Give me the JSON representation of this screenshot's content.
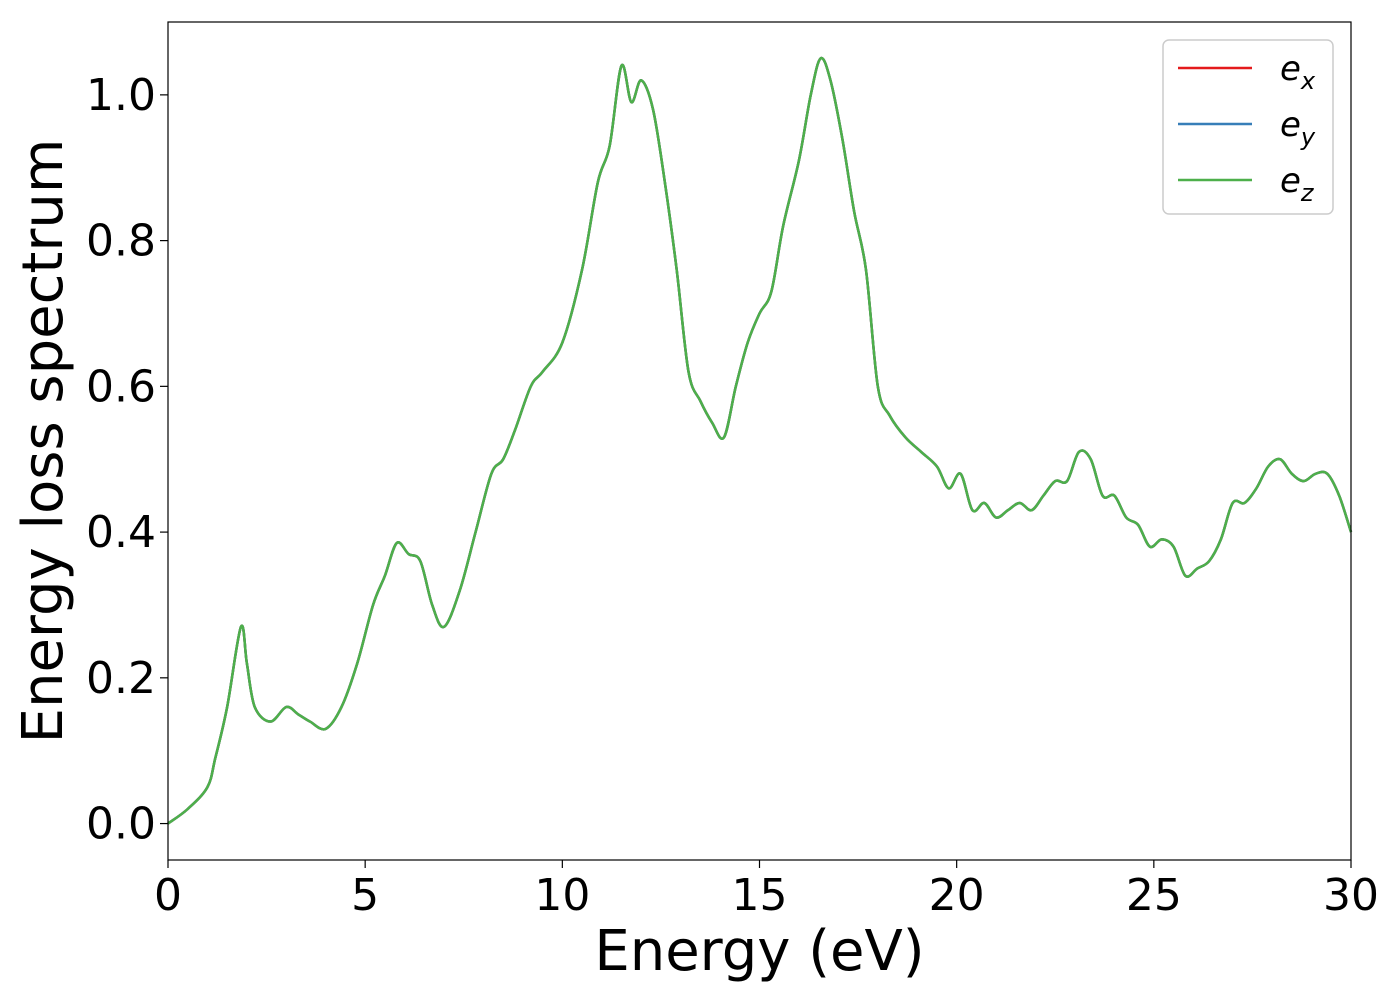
{
  "chart_data": {
    "type": "line",
    "title": "",
    "xlabel": "Energy (eV)",
    "ylabel": "Energy loss spectrum",
    "xlim": [
      0,
      30
    ],
    "ylim": [
      -0.05,
      1.1
    ],
    "xticks": [
      0,
      5,
      10,
      15,
      20,
      25,
      30
    ],
    "yticks": [
      0.0,
      0.2,
      0.4,
      0.6,
      0.8,
      1.0
    ],
    "xtick_labels": [
      "0",
      "5",
      "10",
      "15",
      "20",
      "25",
      "30"
    ],
    "ytick_labels": [
      "0.0",
      "0.2",
      "0.4",
      "0.6",
      "0.8",
      "1.0"
    ],
    "grid": false,
    "legend_position": "top-right",
    "colors": {
      "ex": "#e41a1c",
      "ey": "#377eb8",
      "ez": "#4daf4a"
    },
    "x": [
      0,
      0.5,
      1.0,
      1.2,
      1.5,
      1.85,
      2.0,
      2.2,
      2.6,
      3.0,
      3.3,
      3.6,
      4.0,
      4.4,
      4.8,
      5.2,
      5.5,
      5.8,
      6.1,
      6.4,
      6.7,
      7.0,
      7.4,
      7.8,
      8.2,
      8.5,
      8.8,
      9.2,
      9.5,
      10.0,
      10.5,
      10.9,
      11.2,
      11.5,
      11.75,
      12.0,
      12.3,
      12.6,
      12.9,
      13.2,
      13.5,
      13.8,
      14.1,
      14.4,
      14.7,
      15.0,
      15.3,
      15.6,
      16.0,
      16.3,
      16.55,
      16.8,
      17.1,
      17.4,
      17.7,
      18.0,
      18.3,
      18.7,
      19.1,
      19.5,
      19.8,
      20.1,
      20.4,
      20.7,
      21.0,
      21.3,
      21.6,
      21.9,
      22.2,
      22.5,
      22.8,
      23.1,
      23.4,
      23.7,
      24.0,
      24.3,
      24.6,
      24.9,
      25.2,
      25.5,
      25.8,
      26.1,
      26.4,
      26.7,
      27.0,
      27.3,
      27.6,
      27.9,
      28.2,
      28.5,
      28.8,
      29.1,
      29.4,
      29.7,
      30.0
    ],
    "series": [
      {
        "name": "e_x",
        "label_base": "e",
        "label_sub": "x",
        "values": [
          0.0,
          0.02,
          0.05,
          0.09,
          0.16,
          0.27,
          0.22,
          0.16,
          0.14,
          0.16,
          0.15,
          0.14,
          0.13,
          0.16,
          0.22,
          0.3,
          0.34,
          0.385,
          0.37,
          0.36,
          0.3,
          0.27,
          0.32,
          0.4,
          0.48,
          0.5,
          0.54,
          0.6,
          0.62,
          0.66,
          0.76,
          0.88,
          0.93,
          1.04,
          0.99,
          1.02,
          0.98,
          0.88,
          0.76,
          0.62,
          0.58,
          0.55,
          0.53,
          0.6,
          0.66,
          0.7,
          0.73,
          0.82,
          0.91,
          1.0,
          1.05,
          1.02,
          0.94,
          0.84,
          0.76,
          0.6,
          0.56,
          0.53,
          0.51,
          0.49,
          0.46,
          0.48,
          0.43,
          0.44,
          0.42,
          0.43,
          0.44,
          0.43,
          0.45,
          0.47,
          0.47,
          0.51,
          0.5,
          0.45,
          0.45,
          0.42,
          0.41,
          0.38,
          0.39,
          0.38,
          0.34,
          0.35,
          0.36,
          0.39,
          0.44,
          0.44,
          0.46,
          0.49,
          0.5,
          0.48,
          0.47,
          0.48,
          0.48,
          0.45,
          0.4
        ]
      },
      {
        "name": "e_y",
        "label_base": "e",
        "label_sub": "y",
        "values": [
          0.0,
          0.02,
          0.05,
          0.09,
          0.16,
          0.27,
          0.22,
          0.16,
          0.14,
          0.16,
          0.15,
          0.14,
          0.13,
          0.16,
          0.22,
          0.3,
          0.34,
          0.385,
          0.37,
          0.36,
          0.3,
          0.27,
          0.32,
          0.4,
          0.48,
          0.5,
          0.54,
          0.6,
          0.62,
          0.66,
          0.76,
          0.88,
          0.93,
          1.04,
          0.99,
          1.02,
          0.98,
          0.88,
          0.76,
          0.62,
          0.58,
          0.55,
          0.53,
          0.6,
          0.66,
          0.7,
          0.73,
          0.82,
          0.91,
          1.0,
          1.05,
          1.02,
          0.94,
          0.84,
          0.76,
          0.6,
          0.56,
          0.53,
          0.51,
          0.49,
          0.46,
          0.48,
          0.43,
          0.44,
          0.42,
          0.43,
          0.44,
          0.43,
          0.45,
          0.47,
          0.47,
          0.51,
          0.5,
          0.45,
          0.45,
          0.42,
          0.41,
          0.38,
          0.39,
          0.38,
          0.34,
          0.35,
          0.36,
          0.39,
          0.44,
          0.44,
          0.46,
          0.49,
          0.5,
          0.48,
          0.47,
          0.48,
          0.48,
          0.45,
          0.4
        ]
      },
      {
        "name": "e_z",
        "label_base": "e",
        "label_sub": "z",
        "values": [
          0.0,
          0.02,
          0.05,
          0.09,
          0.16,
          0.27,
          0.22,
          0.16,
          0.14,
          0.16,
          0.15,
          0.14,
          0.13,
          0.16,
          0.22,
          0.3,
          0.34,
          0.385,
          0.37,
          0.36,
          0.3,
          0.27,
          0.32,
          0.4,
          0.48,
          0.5,
          0.54,
          0.6,
          0.62,
          0.66,
          0.76,
          0.88,
          0.93,
          1.04,
          0.99,
          1.02,
          0.98,
          0.88,
          0.76,
          0.62,
          0.58,
          0.55,
          0.53,
          0.6,
          0.66,
          0.7,
          0.73,
          0.82,
          0.91,
          1.0,
          1.05,
          1.02,
          0.94,
          0.84,
          0.76,
          0.6,
          0.56,
          0.53,
          0.51,
          0.49,
          0.46,
          0.48,
          0.43,
          0.44,
          0.42,
          0.43,
          0.44,
          0.43,
          0.45,
          0.47,
          0.47,
          0.51,
          0.5,
          0.45,
          0.45,
          0.42,
          0.41,
          0.38,
          0.39,
          0.38,
          0.34,
          0.35,
          0.36,
          0.39,
          0.44,
          0.44,
          0.46,
          0.49,
          0.5,
          0.48,
          0.47,
          0.48,
          0.48,
          0.45,
          0.4
        ]
      }
    ]
  }
}
